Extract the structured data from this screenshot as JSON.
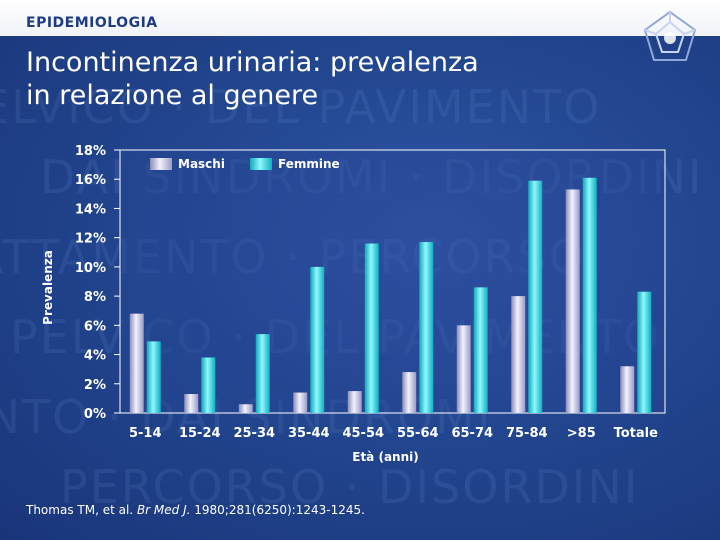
{
  "header": {
    "section_label": "EPIDEMIOLOGIA",
    "title_line1": "Incontinenza urinaria: prevalenza",
    "title_line2": "in relazione al genere"
  },
  "citation": {
    "authors": "Thomas TM, et al.",
    "journal": "Br Med J.",
    "details": "1980;281(6250):1243-1245."
  },
  "chart_data": {
    "type": "bar",
    "categories": [
      "5-14",
      "15-24",
      "25-34",
      "35-44",
      "45-54",
      "55-64",
      "65-74",
      "75-84",
      ">85",
      "Totale"
    ],
    "series": [
      {
        "name": "Maschi",
        "color": "#c8c8e6",
        "values": [
          6.8,
          1.3,
          0.6,
          1.4,
          1.5,
          2.8,
          6.0,
          8.0,
          15.3,
          3.2
        ]
      },
      {
        "name": "Femmine",
        "color": "#22dde8",
        "values": [
          4.9,
          3.8,
          5.4,
          10.0,
          11.6,
          11.7,
          8.6,
          15.9,
          16.1,
          8.3
        ]
      }
    ],
    "title": "",
    "xlabel": "Età (anni)",
    "ylabel": "Prevalenza",
    "ylim": [
      0,
      18
    ],
    "yticks": [
      "0%",
      "2%",
      "4%",
      "6%",
      "8%",
      "10%",
      "12%",
      "14%",
      "16%",
      "18%"
    ],
    "legend_position": "top-left"
  }
}
